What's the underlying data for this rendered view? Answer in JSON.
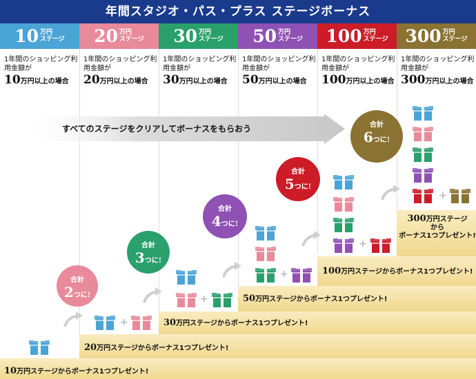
{
  "title": "年間スタジオ・パス・プラス ステージボーナス",
  "columns": [
    {
      "amount": "10",
      "unit1": "万円",
      "unit2": "ステージ",
      "color": "#4ba4d6",
      "desc": "1年間のショッピング利用金額が",
      "cond_num": "10",
      "cond_text": "万円以上の場合"
    },
    {
      "amount": "20",
      "unit1": "万円",
      "unit2": "ステージ",
      "color": "#e88a9a",
      "desc": "1年間のショッピング利用金額が",
      "cond_num": "20",
      "cond_text": "万円以上の場合"
    },
    {
      "amount": "30",
      "unit1": "万円",
      "unit2": "ステージ",
      "color": "#2aa06c",
      "desc": "1年間のショッピング利用金額が",
      "cond_num": "30",
      "cond_text": "万円以上の場合"
    },
    {
      "amount": "50",
      "unit1": "万円",
      "unit2": "ステージ",
      "color": "#8f51b4",
      "desc": "1年間のショッピング利用金額が",
      "cond_num": "50",
      "cond_text": "万円以上の場合"
    },
    {
      "amount": "100",
      "unit1": "万円",
      "unit2": "ステージ",
      "color": "#cc1c28",
      "desc": "1年間のショッピング利用金額が",
      "cond_num": "100",
      "cond_text": "万円以上の場合"
    },
    {
      "amount": "300",
      "unit1": "万円",
      "unit2": "ステージ",
      "color": "#8a7233",
      "desc": "1年間のショッピング利用金額が",
      "cond_num": "300",
      "cond_text": "万円以上の場合"
    }
  ],
  "banner_text": "すべてのステージをクリアしてボーナスをもらおう",
  "steps": [
    {
      "num": "10",
      "text": "万円ステージからボーナス1つプレゼント!"
    },
    {
      "num": "20",
      "text": "万円ステージからボーナス1つプレゼント!"
    },
    {
      "num": "30",
      "text": "万円ステージからボーナス1つプレゼント!"
    },
    {
      "num": "50",
      "text": "万円ステージからボーナス1つプレゼント!"
    },
    {
      "num": "100",
      "text": "万円ステージからボーナス1つプレゼント!"
    }
  ],
  "final_note": {
    "num": "300",
    "line1": "万円ステージ",
    "line2": "から",
    "line3": "ボーナス1つプレゼント!"
  },
  "bubbles": [
    {
      "label": "合計",
      "num": "2",
      "suffix": "つに!",
      "color": "#e88a9a"
    },
    {
      "label": "合計",
      "num": "3",
      "suffix": "つに!",
      "color": "#2aa06c"
    },
    {
      "label": "合計",
      "num": "4",
      "suffix": "つに!",
      "color": "#8f51b4"
    },
    {
      "label": "合計",
      "num": "5",
      "suffix": "つに!",
      "color": "#cc1c28"
    },
    {
      "label": "合計",
      "num": "6",
      "suffix": "つに!",
      "color": "#8a7233"
    }
  ],
  "gift_colors": {
    "blue": "#4ba4d6",
    "pink": "#e88a9a",
    "green": "#2aa06c",
    "purple": "#8f51b4",
    "red": "#cc1c28",
    "gold": "#8a7233"
  },
  "plus_sign": "+"
}
